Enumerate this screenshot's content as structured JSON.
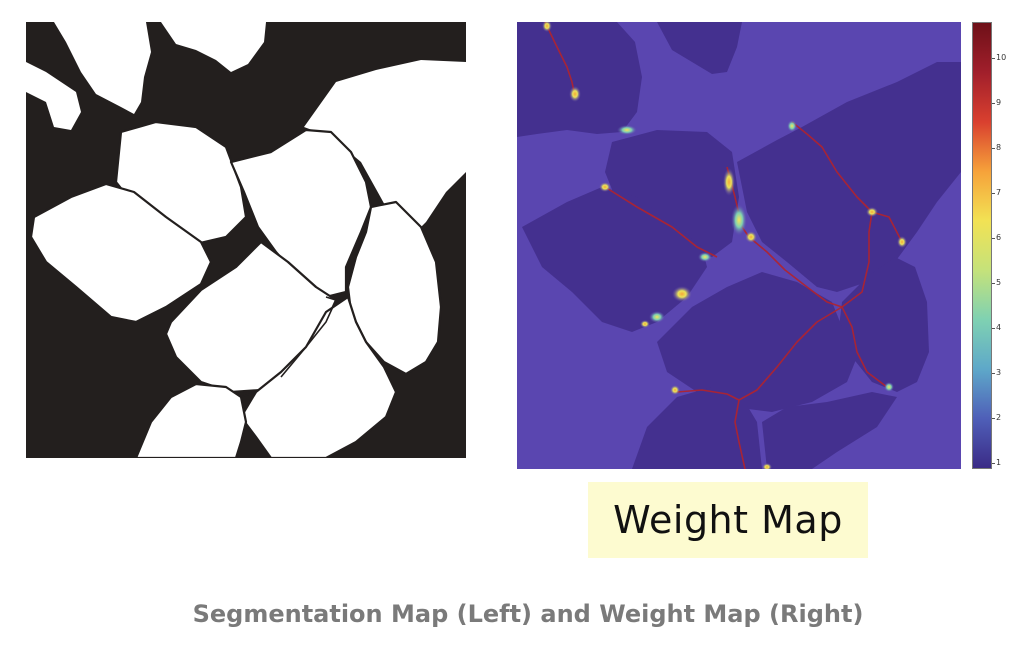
{
  "figure": {
    "weight_map_label": "Weight Map",
    "caption": "Segmentation Map (Left) and Weight Map (Right)"
  },
  "colorbar": {
    "ticks": [
      "10",
      "9",
      "8",
      "7",
      "6",
      "5",
      "4",
      "3",
      "2",
      "1"
    ],
    "colors": [
      "#3b2b87",
      "#4f5fb8",
      "#5ea8c9",
      "#7fd1b2",
      "#c5e27a",
      "#f2e254",
      "#f6a23a",
      "#d9402f",
      "#a11f2b",
      "#6e1018"
    ]
  },
  "colors": {
    "segmentation_background": "#231f1e",
    "segmentation_cells": "#ffffff",
    "weight_background": "#5a46b0",
    "weight_cells": "#44308f",
    "weight_boundaries": "#b3232c",
    "label_box": "#fdfbd0",
    "caption": "#7a7a7a"
  }
}
